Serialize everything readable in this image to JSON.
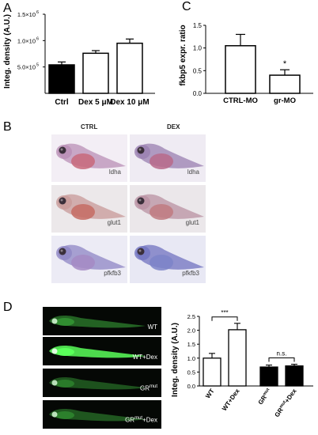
{
  "panels": {
    "a": "A",
    "b": "B",
    "c": "C",
    "d": "D"
  },
  "chart_data": [
    {
      "panel": "A",
      "type": "bar",
      "categories": [
        "Ctrl",
        "Dex 5 μM",
        "Dex 10 μM"
      ],
      "values": [
        540000,
        760000,
        950000
      ],
      "errors": [
        55000,
        50000,
        80000
      ],
      "fills": [
        "#000000",
        "#ffffff",
        "#ffffff"
      ],
      "ylabel": "Integ. density (A.U.)",
      "ylim": [
        0,
        1500000
      ],
      "yticks": [
        {
          "value": 500000,
          "base": "5.0×10",
          "exp": "5"
        },
        {
          "value": 1000000,
          "base": "1.0×10",
          "exp": "6"
        },
        {
          "value": 1500000,
          "base": "1.5×10",
          "exp": "6"
        }
      ]
    },
    {
      "panel": "C",
      "type": "bar",
      "categories": [
        "CTRL-MO",
        "gr-MO"
      ],
      "values": [
        1.05,
        0.4
      ],
      "errors": [
        0.25,
        0.12
      ],
      "fills": [
        "#ffffff",
        "#ffffff"
      ],
      "annotations": [
        "",
        "*"
      ],
      "ylabel": "fkbp5 expr. ratio",
      "ylim": [
        0,
        1.5
      ],
      "yticks": [
        "0.0",
        "0.5",
        "1.0",
        "1.5"
      ]
    },
    {
      "panel": "D",
      "type": "bar",
      "categories": [
        "WT",
        "WT+Dex",
        "GR",
        "GR"
      ],
      "category_sup": [
        "",
        "",
        "mut",
        "mut"
      ],
      "category_suffix": [
        "",
        "",
        "",
        "+Dex"
      ],
      "values": [
        1.0,
        2.02,
        0.68,
        0.72
      ],
      "errors": [
        0.17,
        0.23,
        0.07,
        0.06
      ],
      "fills": [
        "#ffffff",
        "#ffffff",
        "#000000",
        "#000000"
      ],
      "ylabel": "Integ. density (A.U.)",
      "ylim": [
        0,
        2.5
      ],
      "yticks": [
        "0.0",
        "0.5",
        "1.0",
        "1.5",
        "2.0",
        "2.5"
      ],
      "brackets": [
        {
          "from": 0,
          "to": 1,
          "label": "***"
        },
        {
          "from": 2,
          "to": 3,
          "label": "n.s."
        }
      ]
    }
  ],
  "panel_b": {
    "columns": [
      "CTRL",
      "DEX"
    ],
    "genes": [
      "ldha",
      "glut1",
      "pfkfb3"
    ]
  },
  "panel_d_images": {
    "labels": [
      {
        "base": "WT",
        "sup": "",
        "suffix": ""
      },
      {
        "base": "WT+Dex",
        "sup": "",
        "suffix": ""
      },
      {
        "base": "GR",
        "sup": "mut",
        "suffix": ""
      },
      {
        "base": "GR",
        "sup": "mut",
        "suffix": "+Dex"
      }
    ],
    "glow": [
      0.45,
      1.0,
      0.35,
      0.38
    ]
  }
}
